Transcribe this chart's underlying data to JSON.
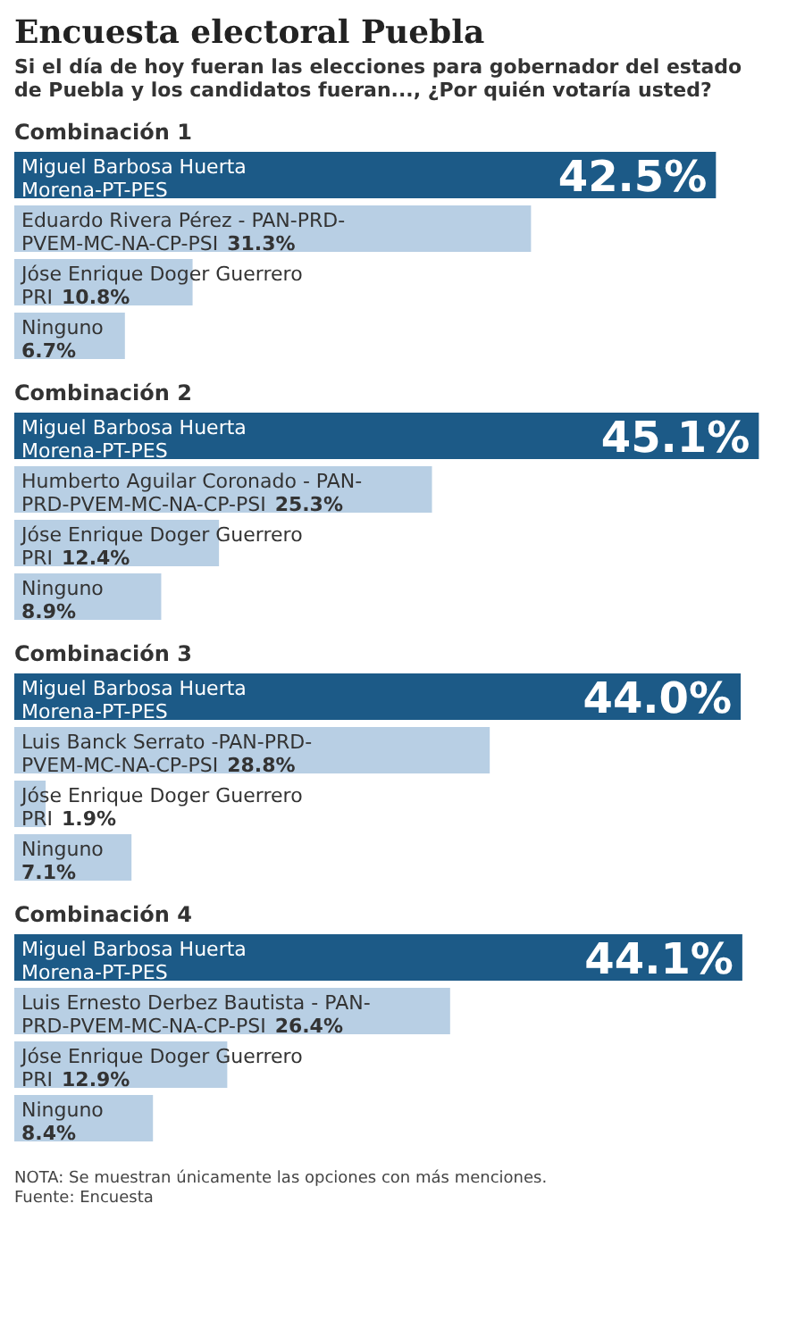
{
  "chart_data": [
    {
      "type": "other",
      "title": "Encuesta electoral Puebla",
      "subtitle": "Si el día de hoy fueran las elecciones para gobernador del estado de Puebla y los candidatos fueran..., ¿Por quién votaría usted?"
    },
    {
      "type": "bar",
      "orientation": "horizontal",
      "title": "Combinación 1",
      "categories": [
        "Miguel Barbosa Huerta\nMorena-PT-PES",
        "Eduardo Rivera Pérez - PAN-PRD-\nPVEM-MC-NA-CP-PSI",
        "Jóse Enrique Doger Guerrero\nPRI",
        "Ninguno\n"
      ],
      "values": [
        42.5,
        31.3,
        10.8,
        6.7
      ],
      "value_labels": [
        "42.5%",
        "31.3%",
        "10.8%",
        "6.7%"
      ],
      "colors": [
        "#1c5a87",
        "#b8cfe4",
        "#b8cfe4",
        "#b8cfe4"
      ],
      "xlim": [
        0,
        46
      ]
    },
    {
      "type": "bar",
      "orientation": "horizontal",
      "title": "Combinación 2",
      "categories": [
        "Miguel Barbosa Huerta\nMorena-PT-PES",
        "Humberto Aguilar Coronado - PAN-\nPRD-PVEM-MC-NA-CP-PSI",
        "Jóse Enrique Doger Guerrero\nPRI",
        "Ninguno\n"
      ],
      "values": [
        45.1,
        25.3,
        12.4,
        8.9
      ],
      "value_labels": [
        "45.1%",
        "25.3%",
        "12.4%",
        "8.9%"
      ],
      "colors": [
        "#1c5a87",
        "#b8cfe4",
        "#b8cfe4",
        "#b8cfe4"
      ],
      "xlim": [
        0,
        46
      ]
    },
    {
      "type": "bar",
      "orientation": "horizontal",
      "title": "Combinación 3",
      "categories": [
        "Miguel Barbosa Huerta\nMorena-PT-PES",
        "Luis Banck Serrato -PAN-PRD-\nPVEM-MC-NA-CP-PSI",
        "Jóse Enrique Doger Guerrero\nPRI",
        "Ninguno\n"
      ],
      "values": [
        44.0,
        28.8,
        1.9,
        7.1
      ],
      "value_labels": [
        "44.0%",
        "28.8%",
        "1.9%",
        "7.1%"
      ],
      "colors": [
        "#1c5a87",
        "#b8cfe4",
        "#b8cfe4",
        "#b8cfe4"
      ],
      "xlim": [
        0,
        46
      ]
    },
    {
      "type": "bar",
      "orientation": "horizontal",
      "title": "Combinación 4",
      "categories": [
        "Miguel Barbosa Huerta\nMorena-PT-PES",
        "Luis Ernesto Derbez Bautista - PAN-\nPRD-PVEM-MC-NA-CP-PSI",
        "Jóse Enrique Doger Guerrero\nPRI",
        "Ninguno\n"
      ],
      "values": [
        44.1,
        26.4,
        12.9,
        8.4
      ],
      "value_labels": [
        "44.1%",
        "26.4%",
        "12.9%",
        "8.4%"
      ],
      "colors": [
        "#1c5a87",
        "#b8cfe4",
        "#b8cfe4",
        "#b8cfe4"
      ],
      "xlim": [
        0,
        46
      ],
      "annotations": [
        "NOTA: Se muestran únicamente las opciones con más menciones.",
        "Fuente: Encuesta"
      ]
    }
  ]
}
